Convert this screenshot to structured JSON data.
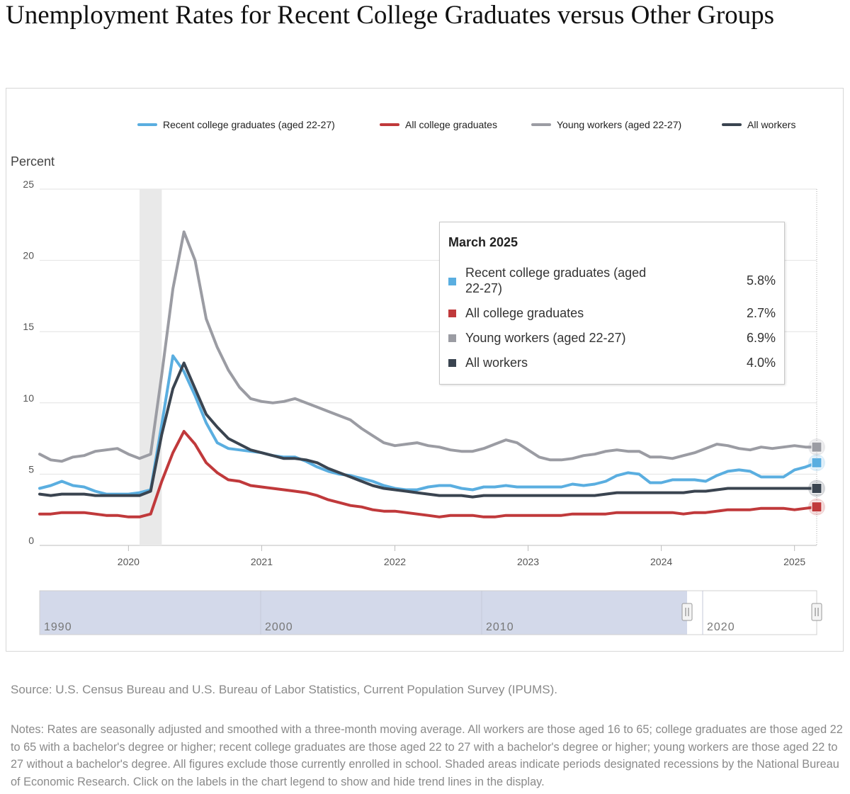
{
  "page": {
    "title": "Unemployment Rates for Recent College Graduates versus Other Groups",
    "source": "Source: U.S. Census Bureau and U.S. Bureau of Labor Statistics, Current Population Survey (IPUMS).",
    "notes": "Notes: Rates are seasonally adjusted and smoothed with a three-month moving average. All workers are those aged 16 to 65; college graduates are those aged 22 to 65 with a bachelor's degree or higher; recent college graduates are those aged 22 to 27 with a bachelor's degree or higher; young workers are those aged 22 to 27 without a bachelor's degree. All figures exclude those currently enrolled in school. Shaded areas indicate periods designated recessions by the National Bureau of Economic Research. Click on the labels in the chart legend to show and hide trend lines in the display."
  },
  "tooltip": {
    "title": "March 2025",
    "rows": [
      {
        "label": "Recent college graduates (aged 22-27)",
        "value": "5.8%",
        "color": "#5aaee0"
      },
      {
        "label": "All college graduates",
        "value": "2.7%",
        "color": "#c0393b"
      },
      {
        "label": "Young workers (aged 22-27)",
        "value": "6.9%",
        "color": "#9b9ca3"
      },
      {
        "label": "All workers",
        "value": "4.0%",
        "color": "#3a4450"
      }
    ]
  },
  "navigator": {
    "labels": [
      "1990",
      "2000",
      "2010",
      "2020"
    ]
  },
  "chart_data": {
    "type": "line",
    "ylabel": "Percent",
    "ylim": [
      0,
      25
    ],
    "yticks": [
      0,
      5,
      10,
      15,
      20,
      25
    ],
    "x_range": [
      "2019-05",
      "2025-03"
    ],
    "xticks": [
      "2020",
      "2021",
      "2022",
      "2023",
      "2024",
      "2025"
    ],
    "grid": true,
    "legend_position": "top",
    "recession": [
      "2020-02",
      "2020-04"
    ],
    "x": [
      "2019-05",
      "2019-06",
      "2019-07",
      "2019-08",
      "2019-09",
      "2019-10",
      "2019-11",
      "2019-12",
      "2020-01",
      "2020-02",
      "2020-03",
      "2020-04",
      "2020-05",
      "2020-06",
      "2020-07",
      "2020-08",
      "2020-09",
      "2020-10",
      "2020-11",
      "2020-12",
      "2021-01",
      "2021-02",
      "2021-03",
      "2021-04",
      "2021-05",
      "2021-06",
      "2021-07",
      "2021-08",
      "2021-09",
      "2021-10",
      "2021-11",
      "2021-12",
      "2022-01",
      "2022-02",
      "2022-03",
      "2022-04",
      "2022-05",
      "2022-06",
      "2022-07",
      "2022-08",
      "2022-09",
      "2022-10",
      "2022-11",
      "2022-12",
      "2023-01",
      "2023-02",
      "2023-03",
      "2023-04",
      "2023-05",
      "2023-06",
      "2023-07",
      "2023-08",
      "2023-09",
      "2023-10",
      "2023-11",
      "2023-12",
      "2024-01",
      "2024-02",
      "2024-03",
      "2024-04",
      "2024-05",
      "2024-06",
      "2024-07",
      "2024-08",
      "2024-09",
      "2024-10",
      "2024-11",
      "2024-12",
      "2025-01",
      "2025-02",
      "2025-03"
    ],
    "series": [
      {
        "name": "Recent college graduates (aged 22-27)",
        "color": "#5aaee0",
        "values": [
          4.0,
          4.2,
          4.5,
          4.2,
          4.1,
          3.8,
          3.6,
          3.6,
          3.6,
          3.7,
          3.9,
          8.5,
          13.3,
          12.2,
          10.5,
          8.6,
          7.2,
          6.8,
          6.7,
          6.6,
          6.5,
          6.3,
          6.2,
          6.2,
          5.9,
          5.5,
          5.2,
          5.0,
          4.9,
          4.7,
          4.5,
          4.2,
          4.0,
          3.9,
          3.9,
          4.1,
          4.2,
          4.2,
          4.0,
          3.9,
          4.1,
          4.1,
          4.2,
          4.1,
          4.1,
          4.1,
          4.1,
          4.1,
          4.3,
          4.2,
          4.3,
          4.5,
          4.9,
          5.1,
          5.0,
          4.4,
          4.4,
          4.6,
          4.6,
          4.6,
          4.5,
          4.9,
          5.2,
          5.3,
          5.2,
          4.8,
          4.8,
          4.8,
          5.3,
          5.5,
          5.8
        ]
      },
      {
        "name": "All college graduates",
        "color": "#c0393b",
        "values": [
          2.2,
          2.2,
          2.3,
          2.3,
          2.3,
          2.2,
          2.1,
          2.1,
          2.0,
          2.0,
          2.2,
          4.5,
          6.5,
          8.0,
          7.1,
          5.8,
          5.1,
          4.6,
          4.5,
          4.2,
          4.1,
          4.0,
          3.9,
          3.8,
          3.7,
          3.5,
          3.2,
          3.0,
          2.8,
          2.7,
          2.5,
          2.4,
          2.4,
          2.3,
          2.2,
          2.1,
          2.0,
          2.1,
          2.1,
          2.1,
          2.0,
          2.0,
          2.1,
          2.1,
          2.1,
          2.1,
          2.1,
          2.1,
          2.2,
          2.2,
          2.2,
          2.2,
          2.3,
          2.3,
          2.3,
          2.3,
          2.3,
          2.3,
          2.2,
          2.3,
          2.3,
          2.4,
          2.5,
          2.5,
          2.5,
          2.6,
          2.6,
          2.6,
          2.5,
          2.6,
          2.7
        ]
      },
      {
        "name": "Young workers (aged 22-27)",
        "color": "#9b9ca3",
        "values": [
          6.4,
          6.0,
          5.9,
          6.2,
          6.3,
          6.6,
          6.7,
          6.8,
          6.4,
          6.1,
          6.4,
          12.0,
          18.0,
          22.0,
          20.0,
          15.9,
          13.9,
          12.3,
          11.1,
          10.3,
          10.1,
          10.0,
          10.1,
          10.3,
          10.0,
          9.7,
          9.4,
          9.1,
          8.8,
          8.2,
          7.7,
          7.2,
          7.0,
          7.1,
          7.2,
          7.0,
          6.9,
          6.7,
          6.6,
          6.6,
          6.8,
          7.1,
          7.4,
          7.2,
          6.7,
          6.2,
          6.0,
          6.0,
          6.1,
          6.3,
          6.4,
          6.6,
          6.7,
          6.6,
          6.6,
          6.2,
          6.2,
          6.1,
          6.3,
          6.5,
          6.8,
          7.1,
          7.0,
          6.8,
          6.7,
          6.9,
          6.8,
          6.9,
          7.0,
          6.9,
          6.9
        ]
      },
      {
        "name": "All workers",
        "color": "#3a4450",
        "values": [
          3.6,
          3.5,
          3.6,
          3.6,
          3.6,
          3.5,
          3.5,
          3.5,
          3.5,
          3.5,
          3.8,
          7.8,
          11.0,
          12.8,
          11.0,
          9.2,
          8.3,
          7.5,
          7.1,
          6.7,
          6.5,
          6.3,
          6.1,
          6.1,
          6.0,
          5.8,
          5.4,
          5.1,
          4.8,
          4.5,
          4.2,
          4.0,
          3.9,
          3.8,
          3.7,
          3.6,
          3.5,
          3.5,
          3.5,
          3.4,
          3.5,
          3.5,
          3.5,
          3.5,
          3.5,
          3.5,
          3.5,
          3.5,
          3.5,
          3.5,
          3.5,
          3.6,
          3.7,
          3.7,
          3.7,
          3.7,
          3.7,
          3.7,
          3.7,
          3.8,
          3.8,
          3.9,
          4.0,
          4.0,
          4.0,
          4.0,
          4.0,
          4.0,
          4.0,
          4.0,
          4.0
        ]
      }
    ]
  }
}
